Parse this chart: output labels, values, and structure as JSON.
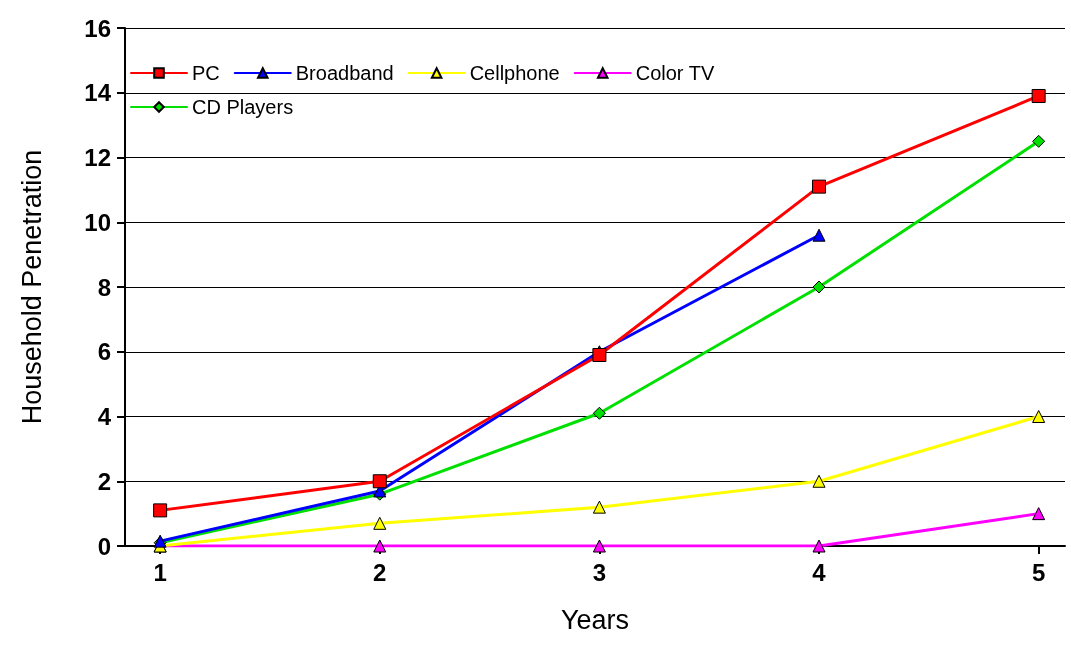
{
  "chart_data": {
    "type": "line",
    "xlabel": "Years",
    "ylabel": "Household Penetration",
    "x": [
      1,
      2,
      3,
      4,
      5
    ],
    "xlim": [
      0.84,
      5.12
    ],
    "xticks": [
      1,
      2,
      3,
      4,
      5
    ],
    "ylim": [
      0,
      16
    ],
    "yticks": [
      0,
      2,
      4,
      6,
      8,
      10,
      12,
      14,
      16
    ],
    "grid": "y",
    "legend": "top left",
    "series": [
      {
        "name": "PC",
        "color": "#ff0000",
        "marker": "square",
        "values": [
          1.1,
          2.0,
          5.9,
          11.1,
          13.9
        ]
      },
      {
        "name": "Broadband",
        "color": "#0000ff",
        "marker": "triangle",
        "values": [
          0.15,
          1.7,
          6.0,
          9.6,
          null
        ]
      },
      {
        "name": "Cellphone",
        "color": "#ffff00",
        "marker": "triangle",
        "values": [
          0,
          0.7,
          1.2,
          2.0,
          4.0
        ]
      },
      {
        "name": "Color TV",
        "color": "#ff00ff",
        "marker": "triangle",
        "values": [
          0,
          0,
          0,
          0,
          1.0
        ]
      },
      {
        "name": "CD Players",
        "color": "#00e000",
        "marker": "diamond",
        "values": [
          0.1,
          1.6,
          4.1,
          8.0,
          12.5
        ]
      }
    ]
  }
}
